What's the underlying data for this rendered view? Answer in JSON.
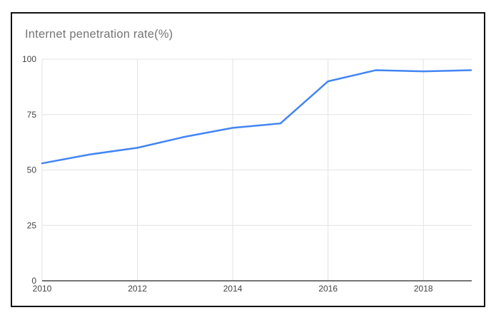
{
  "chart_data": {
    "type": "line",
    "title": "Internet penetration rate(%)",
    "x": [
      2010,
      2011,
      2012,
      2013,
      2014,
      2015,
      2016,
      2017,
      2018,
      2019
    ],
    "series": [
      {
        "name": "Internet penetration rate",
        "values": [
          53,
          57,
          60,
          65,
          69,
          71,
          90,
          95,
          94.5,
          95
        ]
      }
    ],
    "xlabel": "",
    "ylabel": "",
    "xlim": [
      2010,
      2019
    ],
    "ylim": [
      0,
      100
    ],
    "xticks": [
      2010,
      2012,
      2014,
      2016,
      2018
    ],
    "yticks": [
      0,
      25,
      50,
      75,
      100
    ],
    "grid": "on",
    "legend": "none",
    "colors": {
      "line": "#4285f4",
      "grid": "#e3e3e3",
      "axis": "#757575",
      "tick_label": "#444444",
      "title": "#757575",
      "frame_border": "#111111",
      "background": "#ffffff"
    }
  }
}
